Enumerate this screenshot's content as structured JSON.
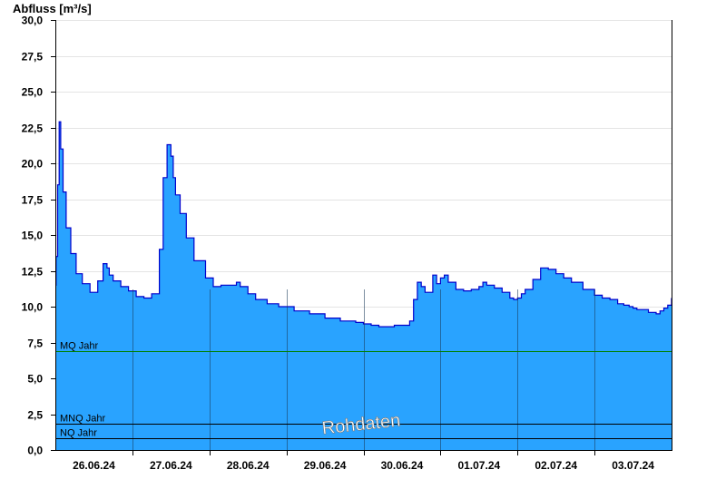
{
  "chart_data": {
    "type": "area",
    "title": "",
    "ylabel": "Abfluss [m³/s]",
    "xlabel": "",
    "ylim": [
      0,
      30
    ],
    "yticks": [
      "0,0",
      "2,5",
      "5,0",
      "7,5",
      "10,0",
      "12,5",
      "15,0",
      "17,5",
      "20,0",
      "22,5",
      "25,0",
      "27,5",
      "30,0"
    ],
    "xticks": [
      "26.06.24",
      "27.06.24",
      "28.06.24",
      "29.06.24",
      "30.06.24",
      "01.07.24",
      "02.07.24",
      "03.07.24"
    ],
    "x_unit": "days since 25.06.24 12:00",
    "x_range": [
      0,
      8
    ],
    "grid": true,
    "area_color": "#29a3ff",
    "line_color": "#0000cc",
    "series": [
      {
        "name": "Abfluss",
        "x": [
          0,
          0.01,
          0.03,
          0.05,
          0.07,
          0.1,
          0.14,
          0.2,
          0.27,
          0.35,
          0.45,
          0.55,
          0.62,
          0.67,
          0.7,
          0.75,
          0.85,
          0.95,
          1.05,
          1.15,
          1.25,
          1.35,
          1.4,
          1.45,
          1.5,
          1.53,
          1.56,
          1.62,
          1.7,
          1.8,
          1.95,
          2.05,
          2.15,
          2.25,
          2.35,
          2.4,
          2.5,
          2.6,
          2.75,
          2.9,
          3.1,
          3.3,
          3.5,
          3.7,
          3.9,
          4.0,
          4.05,
          4.1,
          4.2,
          4.4,
          4.6,
          4.65,
          4.7,
          4.75,
          4.8,
          4.85,
          4.9,
          4.95,
          5.0,
          5.05,
          5.1,
          5.2,
          5.3,
          5.4,
          5.5,
          5.55,
          5.6,
          5.7,
          5.8,
          5.9,
          5.95,
          6.0,
          6.05,
          6.1,
          6.2,
          6.3,
          6.4,
          6.5,
          6.6,
          6.7,
          6.85,
          7.0,
          7.1,
          7.2,
          7.3,
          7.38,
          7.45,
          7.5,
          7.55,
          7.6,
          7.7,
          7.8,
          7.85,
          7.9,
          7.95,
          8.0
        ],
        "values": [
          11.5,
          13.5,
          18.5,
          22.9,
          21.0,
          18.0,
          15.5,
          13.7,
          12.3,
          11.6,
          11.0,
          11.8,
          13.0,
          12.7,
          12.2,
          11.8,
          11.4,
          11.1,
          10.7,
          10.6,
          10.9,
          14.0,
          19.0,
          21.3,
          20.5,
          19.0,
          17.8,
          16.5,
          14.8,
          13.2,
          12.0,
          11.4,
          11.5,
          11.5,
          11.7,
          11.4,
          10.9,
          10.5,
          10.2,
          10.0,
          9.7,
          9.5,
          9.2,
          9.0,
          8.9,
          8.8,
          8.8,
          8.7,
          8.6,
          8.7,
          9.0,
          10.5,
          11.7,
          11.4,
          11.0,
          11.0,
          12.2,
          11.6,
          12.0,
          12.2,
          11.7,
          11.2,
          11.1,
          11.2,
          11.4,
          11.7,
          11.5,
          11.3,
          11.0,
          10.6,
          10.5,
          10.6,
          10.9,
          11.2,
          11.9,
          12.7,
          12.6,
          12.3,
          12.0,
          11.7,
          11.2,
          10.8,
          10.6,
          10.5,
          10.2,
          10.1,
          10.0,
          9.9,
          9.8,
          9.8,
          9.6,
          9.5,
          9.7,
          9.9,
          10.1,
          10.6
        ]
      }
    ],
    "reference_lines": [
      {
        "label": "MQ Jahr",
        "value": 6.9,
        "color": "#008000"
      },
      {
        "label": "MNQ Jahr",
        "value": 1.85,
        "color": "#000000"
      },
      {
        "label": "NQ Jahr",
        "value": 0.8,
        "color": "#000000"
      }
    ],
    "watermark": "Rohdaten"
  }
}
